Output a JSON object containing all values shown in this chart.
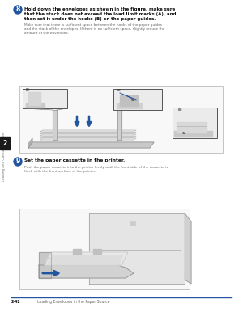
{
  "bg_color": "#ffffff",
  "sidebar_bg": "#ffffff",
  "sidebar_number": "2",
  "sidebar_number_bg": "#1a1a1a",
  "sidebar_number_color": "#ffffff",
  "sidebar_text": "Loading and Outputting Paper",
  "step8_number": "8",
  "step8_number_bg": "#2255a0",
  "step8_bold": "Hold down the envelopes as shown in the figure, make sure\nthat the stack does not exceed the load limit marks (A), and\nthen set it under the hooks (B) on the paper guides.",
  "step8_note": "Make sure that there is sufficient space between the hooks of the paper guides\nand the stack of the envelopes. If there is no sufficient space, slightly reduce the\namount of the envelopes.",
  "step9_number": "9",
  "step9_number_bg": "#2255a0",
  "step9_bold": "Set the paper cassette in the printer.",
  "step9_note": "Push the paper cassette into the printer firmly until the front side of the cassette is\nflush with the front surface of the printer.",
  "footer_line_color": "#2255a0",
  "footer_page": "2-42",
  "footer_section": "Loading Envelopes in the Paper Source",
  "text_dark": "#111111",
  "text_gray": "#666666",
  "blue_arrow": "#2255a0",
  "img_border": "#bbbbbb",
  "img_bg": "#f0f0f0"
}
